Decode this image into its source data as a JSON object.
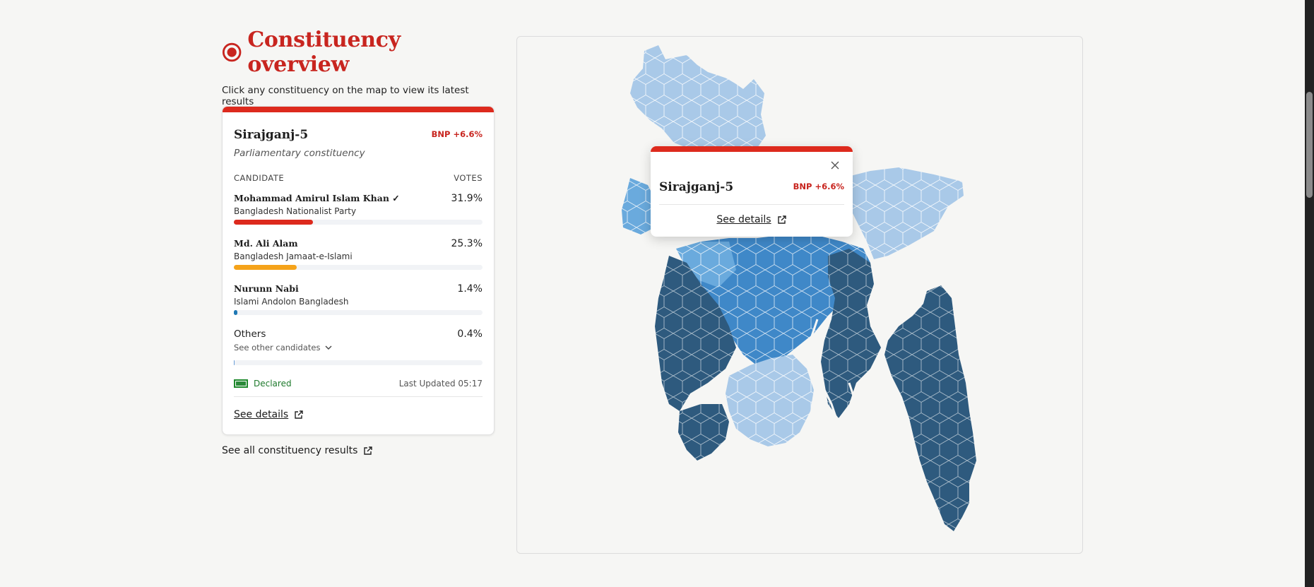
{
  "header": {
    "title": "Constituency overview",
    "subtitle": "Click any constituency on the map to view its latest results"
  },
  "card": {
    "constituency": "Sirajganj-5",
    "lead": "BNP +6.6%",
    "type": "Parliamentary constituency",
    "col_candidate": "CANDIDATE",
    "col_votes": "VOTES",
    "candidates": [
      {
        "name": "Mohammad Amirul Islam Khan ✓",
        "party": "Bangladesh Nationalist Party",
        "share": "31.9%",
        "value": 31.9,
        "color": "#dd2a1d"
      },
      {
        "name": "Md. Ali Alam",
        "party": "Bangladesh Jamaat-e-Islami",
        "share": "25.3%",
        "value": 25.3,
        "color": "#f5a31a"
      },
      {
        "name": "Nurunn Nabi",
        "party": "Islami Andolon Bangladesh",
        "share": "1.4%",
        "value": 1.4,
        "color": "#1f78b4"
      }
    ],
    "others": {
      "name": "Others",
      "link": "See other candidates",
      "share": "0.4%",
      "value": 0.4,
      "color": "#6a9fd8"
    },
    "status": "Declared",
    "updated": "Last Updated 05:17",
    "details_link": "See details"
  },
  "all_results_link": "See all constituency results",
  "popup": {
    "constituency": "Sirajganj-5",
    "lead": "BNP +6.6%",
    "details_link": "See details"
  },
  "map_colors": {
    "light": "#a9c9e8",
    "mid": "#6aaadd",
    "strong": "#3f88c8",
    "dark": "#2e5a7e"
  }
}
